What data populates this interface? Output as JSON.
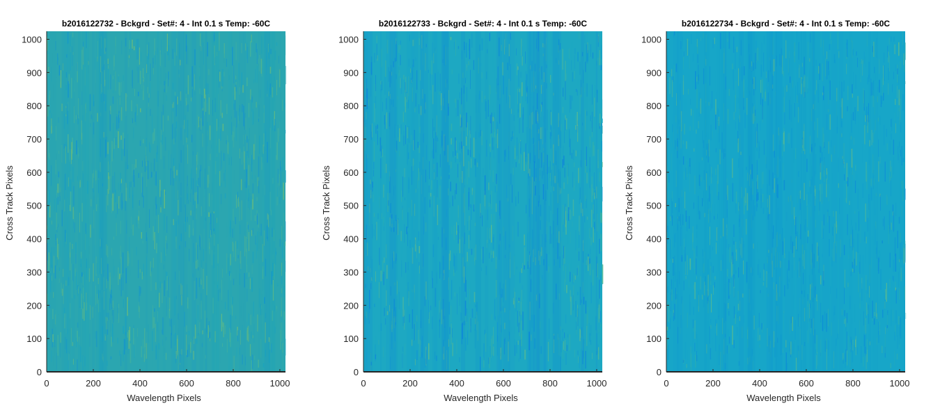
{
  "figure": {
    "background": "#ffffff"
  },
  "chart_data": [
    {
      "type": "heatmap",
      "title": "b2016122732 - Bckgrd - Set#: 4 - Int 0.1 s Temp: -60C",
      "xlabel": "Wavelength Pixels",
      "ylabel": "Cross Track Pixels",
      "xlim": [
        0,
        1024
      ],
      "ylim": [
        0,
        1024
      ],
      "xticks": [
        0,
        200,
        400,
        600,
        800,
        1000
      ],
      "yticks": [
        0,
        100,
        200,
        300,
        400,
        500,
        600,
        700,
        800,
        900,
        1000
      ],
      "colormap": "parula",
      "base_color": "#2ba6b0",
      "colors": [
        "#0f8fd6",
        "#17a2c4",
        "#2ba6b0",
        "#4fb794",
        "#7fc46a"
      ],
      "appearance": "mostly teal-green noise with yellowish vertical streaks"
    },
    {
      "type": "heatmap",
      "title": "b2016122733 - Bckgrd - Set#: 4 - Int 0.1 s Temp: -60C",
      "xlabel": "Wavelength Pixels",
      "ylabel": "Cross Track Pixels",
      "xlim": [
        0,
        1024
      ],
      "ylim": [
        0,
        1024
      ],
      "xticks": [
        0,
        200,
        400,
        600,
        800,
        1000
      ],
      "yticks": [
        0,
        100,
        200,
        300,
        400,
        500,
        600,
        700,
        800,
        900,
        1000
      ],
      "colormap": "parula",
      "base_color": "#1da8c2",
      "colors": [
        "#0b7fe0",
        "#0f95d4",
        "#1da8c2",
        "#38b1a5",
        "#6cc082"
      ],
      "appearance": "blue-teal noise with bluer vertical bands"
    },
    {
      "type": "heatmap",
      "title": "b2016122734 - Bckgrd - Set#: 4 - Int 0.1 s Temp: -60C",
      "xlabel": "Wavelength Pixels",
      "ylabel": "Cross Track Pixels",
      "xlim": [
        0,
        1024
      ],
      "ylim": [
        0,
        1024
      ],
      "xticks": [
        0,
        200,
        400,
        600,
        800,
        1000
      ],
      "yticks": [
        0,
        100,
        200,
        300,
        400,
        500,
        600,
        700,
        800,
        900,
        1000
      ],
      "colormap": "parula",
      "base_color": "#17a6c8",
      "colors": [
        "#0a86dc",
        "#0f9bd0",
        "#17a6c8",
        "#30afac",
        "#62bd88"
      ],
      "appearance": "blue-teal noise with sparse yellow vertical streaks"
    }
  ]
}
